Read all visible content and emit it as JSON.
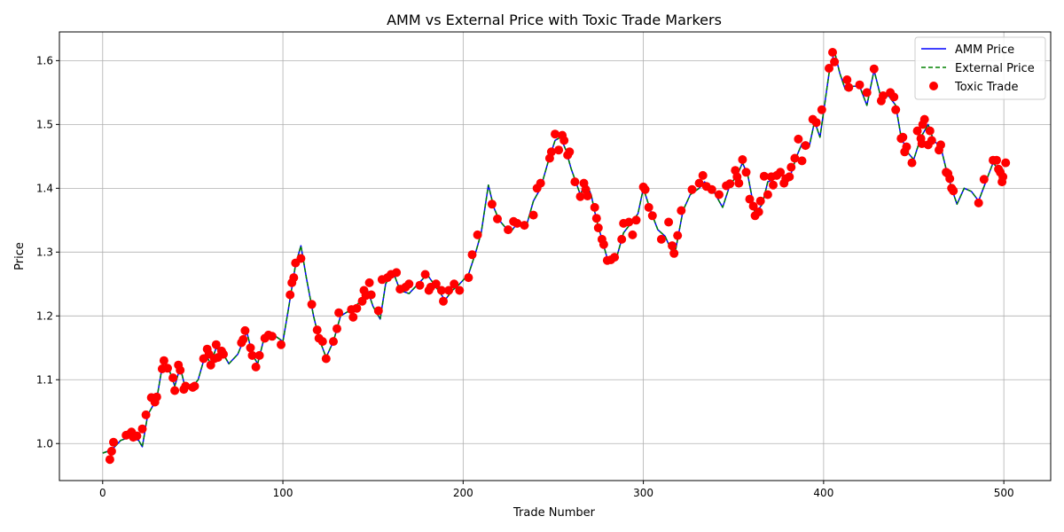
{
  "chart_data": {
    "type": "line",
    "title": "AMM vs External Price with Toxic Trade Markers",
    "xlabel": "Trade Number",
    "ylabel": "Price",
    "xlim": [
      -24,
      526
    ],
    "ylim": [
      0.942,
      1.645
    ],
    "xticks": [
      0,
      100,
      200,
      300,
      400,
      500
    ],
    "yticks": [
      1.0,
      1.1,
      1.2,
      1.3,
      1.4,
      1.5,
      1.6
    ],
    "grid": true,
    "legend_position": "top-right",
    "colors": {
      "amm": "#0000ff",
      "external": "#008000",
      "toxic": "#ff0000"
    },
    "series": [
      {
        "name": "AMM Price",
        "style": "solid"
      },
      {
        "name": "External Price",
        "style": "dashed"
      },
      {
        "name": "Toxic Trade",
        "style": "marker"
      }
    ],
    "price_path": [
      [
        0,
        0.985
      ],
      [
        5,
        0.99
      ],
      [
        10,
        1.005
      ],
      [
        15,
        1.01
      ],
      [
        20,
        1.005
      ],
      [
        22,
        0.995
      ],
      [
        25,
        1.045
      ],
      [
        30,
        1.07
      ],
      [
        33,
        1.12
      ],
      [
        37,
        1.115
      ],
      [
        40,
        1.09
      ],
      [
        43,
        1.12
      ],
      [
        46,
        1.085
      ],
      [
        50,
        1.09
      ],
      [
        53,
        1.1
      ],
      [
        57,
        1.14
      ],
      [
        60,
        1.125
      ],
      [
        63,
        1.15
      ],
      [
        67,
        1.14
      ],
      [
        70,
        1.125
      ],
      [
        75,
        1.14
      ],
      [
        80,
        1.175
      ],
      [
        83,
        1.14
      ],
      [
        86,
        1.125
      ],
      [
        90,
        1.17
      ],
      [
        95,
        1.17
      ],
      [
        100,
        1.16
      ],
      [
        103,
        1.21
      ],
      [
        107,
        1.28
      ],
      [
        110,
        1.31
      ],
      [
        113,
        1.26
      ],
      [
        117,
        1.2
      ],
      [
        120,
        1.165
      ],
      [
        124,
        1.135
      ],
      [
        128,
        1.16
      ],
      [
        132,
        1.2
      ],
      [
        138,
        1.21
      ],
      [
        142,
        1.22
      ],
      [
        147,
        1.24
      ],
      [
        150,
        1.215
      ],
      [
        154,
        1.195
      ],
      [
        157,
        1.25
      ],
      [
        161,
        1.27
      ],
      [
        165,
        1.24
      ],
      [
        170,
        1.235
      ],
      [
        175,
        1.25
      ],
      [
        180,
        1.265
      ],
      [
        185,
        1.245
      ],
      [
        190,
        1.225
      ],
      [
        194,
        1.24
      ],
      [
        198,
        1.25
      ],
      [
        203,
        1.265
      ],
      [
        207,
        1.3
      ],
      [
        210,
        1.33
      ],
      [
        214,
        1.405
      ],
      [
        217,
        1.37
      ],
      [
        220,
        1.35
      ],
      [
        226,
        1.33
      ],
      [
        230,
        1.345
      ],
      [
        235,
        1.34
      ],
      [
        239,
        1.38
      ],
      [
        243,
        1.4
      ],
      [
        247,
        1.44
      ],
      [
        251,
        1.475
      ],
      [
        254,
        1.48
      ],
      [
        257,
        1.46
      ],
      [
        260,
        1.43
      ],
      [
        265,
        1.39
      ],
      [
        268,
        1.41
      ],
      [
        271,
        1.39
      ],
      [
        274,
        1.35
      ],
      [
        277,
        1.32
      ],
      [
        280,
        1.29
      ],
      [
        285,
        1.29
      ],
      [
        289,
        1.33
      ],
      [
        293,
        1.345
      ],
      [
        297,
        1.36
      ],
      [
        300,
        1.4
      ],
      [
        304,
        1.365
      ],
      [
        308,
        1.335
      ],
      [
        312,
        1.325
      ],
      [
        316,
        1.3
      ],
      [
        318,
        1.305
      ],
      [
        322,
        1.365
      ],
      [
        326,
        1.39
      ],
      [
        331,
        1.4
      ],
      [
        334,
        1.41
      ],
      [
        339,
        1.395
      ],
      [
        344,
        1.37
      ],
      [
        348,
        1.405
      ],
      [
        352,
        1.42
      ],
      [
        355,
        1.44
      ],
      [
        358,
        1.42
      ],
      [
        362,
        1.36
      ],
      [
        366,
        1.375
      ],
      [
        369,
        1.41
      ],
      [
        373,
        1.415
      ],
      [
        377,
        1.42
      ],
      [
        381,
        1.415
      ],
      [
        385,
        1.45
      ],
      [
        388,
        1.47
      ],
      [
        392,
        1.465
      ],
      [
        395,
        1.505
      ],
      [
        398,
        1.48
      ],
      [
        400,
        1.52
      ],
      [
        403,
        1.58
      ],
      [
        406,
        1.615
      ],
      [
        409,
        1.58
      ],
      [
        412,
        1.555
      ],
      [
        416,
        1.56
      ],
      [
        420,
        1.56
      ],
      [
        424,
        1.53
      ],
      [
        428,
        1.585
      ],
      [
        432,
        1.54
      ],
      [
        436,
        1.545
      ],
      [
        440,
        1.53
      ],
      [
        443,
        1.48
      ],
      [
        447,
        1.455
      ],
      [
        450,
        1.445
      ],
      [
        454,
        1.48
      ],
      [
        458,
        1.5
      ],
      [
        461,
        1.475
      ],
      [
        465,
        1.465
      ],
      [
        468,
        1.43
      ],
      [
        471,
        1.4
      ],
      [
        474,
        1.375
      ],
      [
        478,
        1.4
      ],
      [
        482,
        1.395
      ],
      [
        486,
        1.38
      ],
      [
        490,
        1.41
      ],
      [
        494,
        1.44
      ],
      [
        497,
        1.43
      ],
      [
        500,
        1.42
      ]
    ],
    "toxic_trades": [
      [
        4,
        0.975
      ],
      [
        5,
        0.988
      ],
      [
        6,
        1.002
      ],
      [
        13,
        1.013
      ],
      [
        15,
        1.015
      ],
      [
        16,
        1.018
      ],
      [
        17,
        1.01
      ],
      [
        19,
        1.012
      ],
      [
        22,
        1.023
      ],
      [
        24,
        1.045
      ],
      [
        27,
        1.072
      ],
      [
        29,
        1.065
      ],
      [
        30,
        1.073
      ],
      [
        33,
        1.117
      ],
      [
        34,
        1.13
      ],
      [
        36,
        1.118
      ],
      [
        39,
        1.103
      ],
      [
        40,
        1.083
      ],
      [
        42,
        1.123
      ],
      [
        43,
        1.115
      ],
      [
        45,
        1.085
      ],
      [
        46,
        1.09
      ],
      [
        50,
        1.088
      ],
      [
        51,
        1.09
      ],
      [
        56,
        1.133
      ],
      [
        58,
        1.148
      ],
      [
        59,
        1.14
      ],
      [
        60,
        1.123
      ],
      [
        62,
        1.133
      ],
      [
        63,
        1.155
      ],
      [
        64,
        1.135
      ],
      [
        66,
        1.145
      ],
      [
        67,
        1.14
      ],
      [
        77,
        1.158
      ],
      [
        78,
        1.163
      ],
      [
        79,
        1.177
      ],
      [
        82,
        1.15
      ],
      [
        83,
        1.138
      ],
      [
        85,
        1.12
      ],
      [
        87,
        1.138
      ],
      [
        90,
        1.165
      ],
      [
        92,
        1.17
      ],
      [
        94,
        1.168
      ],
      [
        99,
        1.155
      ],
      [
        104,
        1.233
      ],
      [
        105,
        1.252
      ],
      [
        106,
        1.26
      ],
      [
        107,
        1.283
      ],
      [
        110,
        1.29
      ],
      [
        116,
        1.218
      ],
      [
        119,
        1.178
      ],
      [
        120,
        1.165
      ],
      [
        122,
        1.16
      ],
      [
        124,
        1.133
      ],
      [
        128,
        1.16
      ],
      [
        130,
        1.18
      ],
      [
        131,
        1.205
      ],
      [
        138,
        1.21
      ],
      [
        139,
        1.198
      ],
      [
        141,
        1.212
      ],
      [
        144,
        1.223
      ],
      [
        145,
        1.24
      ],
      [
        146,
        1.232
      ],
      [
        148,
        1.252
      ],
      [
        149,
        1.233
      ],
      [
        153,
        1.208
      ],
      [
        155,
        1.257
      ],
      [
        158,
        1.26
      ],
      [
        160,
        1.265
      ],
      [
        163,
        1.268
      ],
      [
        165,
        1.242
      ],
      [
        168,
        1.245
      ],
      [
        170,
        1.25
      ],
      [
        176,
        1.248
      ],
      [
        179,
        1.265
      ],
      [
        181,
        1.24
      ],
      [
        182,
        1.245
      ],
      [
        185,
        1.25
      ],
      [
        188,
        1.24
      ],
      [
        189,
        1.223
      ],
      [
        192,
        1.24
      ],
      [
        195,
        1.25
      ],
      [
        198,
        1.24
      ],
      [
        203,
        1.26
      ],
      [
        205,
        1.296
      ],
      [
        208,
        1.327
      ],
      [
        216,
        1.375
      ],
      [
        219,
        1.352
      ],
      [
        225,
        1.335
      ],
      [
        228,
        1.348
      ],
      [
        230,
        1.345
      ],
      [
        234,
        1.342
      ],
      [
        239,
        1.358
      ],
      [
        241,
        1.4
      ],
      [
        243,
        1.408
      ],
      [
        248,
        1.447
      ],
      [
        249,
        1.457
      ],
      [
        251,
        1.485
      ],
      [
        253,
        1.46
      ],
      [
        255,
        1.483
      ],
      [
        256,
        1.475
      ],
      [
        258,
        1.452
      ],
      [
        259,
        1.457
      ],
      [
        262,
        1.41
      ],
      [
        265,
        1.387
      ],
      [
        267,
        1.408
      ],
      [
        268,
        1.398
      ],
      [
        269,
        1.388
      ],
      [
        273,
        1.37
      ],
      [
        274,
        1.353
      ],
      [
        275,
        1.338
      ],
      [
        277,
        1.32
      ],
      [
        278,
        1.312
      ],
      [
        280,
        1.287
      ],
      [
        282,
        1.288
      ],
      [
        284,
        1.292
      ],
      [
        288,
        1.32
      ],
      [
        289,
        1.345
      ],
      [
        292,
        1.347
      ],
      [
        294,
        1.327
      ],
      [
        296,
        1.35
      ],
      [
        300,
        1.402
      ],
      [
        301,
        1.398
      ],
      [
        303,
        1.37
      ],
      [
        305,
        1.357
      ],
      [
        310,
        1.32
      ],
      [
        314,
        1.347
      ],
      [
        316,
        1.31
      ],
      [
        317,
        1.298
      ],
      [
        319,
        1.326
      ],
      [
        321,
        1.365
      ],
      [
        327,
        1.398
      ],
      [
        331,
        1.408
      ],
      [
        333,
        1.42
      ],
      [
        335,
        1.403
      ],
      [
        338,
        1.398
      ],
      [
        342,
        1.39
      ],
      [
        346,
        1.404
      ],
      [
        348,
        1.407
      ],
      [
        351,
        1.428
      ],
      [
        352,
        1.418
      ],
      [
        353,
        1.408
      ],
      [
        355,
        1.445
      ],
      [
        357,
        1.425
      ],
      [
        359,
        1.383
      ],
      [
        361,
        1.372
      ],
      [
        362,
        1.357
      ],
      [
        364,
        1.363
      ],
      [
        365,
        1.38
      ],
      [
        367,
        1.419
      ],
      [
        369,
        1.39
      ],
      [
        371,
        1.418
      ],
      [
        372,
        1.405
      ],
      [
        374,
        1.42
      ],
      [
        376,
        1.425
      ],
      [
        378,
        1.408
      ],
      [
        379,
        1.415
      ],
      [
        381,
        1.418
      ],
      [
        382,
        1.433
      ],
      [
        384,
        1.447
      ],
      [
        386,
        1.477
      ],
      [
        388,
        1.443
      ],
      [
        390,
        1.467
      ],
      [
        394,
        1.508
      ],
      [
        396,
        1.503
      ],
      [
        399,
        1.523
      ],
      [
        403,
        1.588
      ],
      [
        405,
        1.613
      ],
      [
        406,
        1.598
      ],
      [
        413,
        1.57
      ],
      [
        414,
        1.558
      ],
      [
        420,
        1.562
      ],
      [
        424,
        1.55
      ],
      [
        428,
        1.587
      ],
      [
        432,
        1.537
      ],
      [
        433,
        1.545
      ],
      [
        437,
        1.55
      ],
      [
        439,
        1.543
      ],
      [
        440,
        1.523
      ],
      [
        443,
        1.478
      ],
      [
        444,
        1.48
      ],
      [
        445,
        1.457
      ],
      [
        446,
        1.465
      ],
      [
        449,
        1.44
      ],
      [
        452,
        1.49
      ],
      [
        454,
        1.478
      ],
      [
        454.5,
        1.47
      ],
      [
        455,
        1.5
      ],
      [
        456,
        1.508
      ],
      [
        458,
        1.468
      ],
      [
        459,
        1.49
      ],
      [
        460,
        1.475
      ],
      [
        464,
        1.46
      ],
      [
        465,
        1.468
      ],
      [
        468,
        1.425
      ],
      [
        469,
        1.423
      ],
      [
        470,
        1.415
      ],
      [
        471,
        1.4
      ],
      [
        472,
        1.396
      ],
      [
        486,
        1.377
      ],
      [
        489,
        1.414
      ],
      [
        494,
        1.444
      ],
      [
        496,
        1.444
      ],
      [
        497,
        1.43
      ],
      [
        498,
        1.425
      ],
      [
        499,
        1.41
      ],
      [
        499.5,
        1.418
      ],
      [
        501,
        1.44
      ]
    ]
  }
}
